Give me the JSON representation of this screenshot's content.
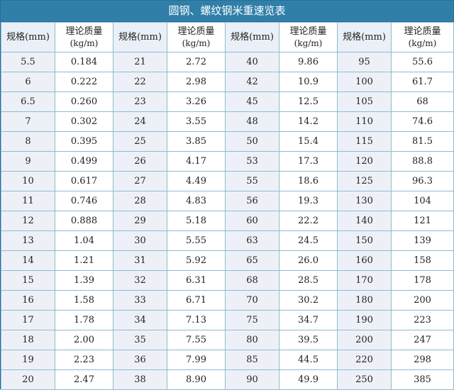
{
  "title": "圆钢、螺纹钢米重速览表",
  "headers": {
    "spec": "规格(mm)",
    "mass_line1": "理论质量",
    "mass_line2": "(kg/m)"
  },
  "rows": [
    [
      "5.5",
      "0.184",
      "21",
      "2.72",
      "40",
      "9.86",
      "95",
      "55.6"
    ],
    [
      "6",
      "0.222",
      "22",
      "2.98",
      "42",
      "10.9",
      "100",
      "61.7"
    ],
    [
      "6.5",
      "0.260",
      "23",
      "3.26",
      "45",
      "12.5",
      "105",
      "68"
    ],
    [
      "7",
      "0.302",
      "24",
      "3.55",
      "48",
      "14.2",
      "110",
      "74.6"
    ],
    [
      "8",
      "0.395",
      "25",
      "3.85",
      "50",
      "15.4",
      "115",
      "81.5"
    ],
    [
      "9",
      "0.499",
      "26",
      "4.17",
      "53",
      "17.3",
      "120",
      "88.8"
    ],
    [
      "10",
      "0.617",
      "27",
      "4.49",
      "55",
      "18.6",
      "125",
      "96.3"
    ],
    [
      "11",
      "0.746",
      "28",
      "4.83",
      "56",
      "19.3",
      "130",
      "104"
    ],
    [
      "12",
      "0.888",
      "29",
      "5.18",
      "60",
      "22.2",
      "140",
      "121"
    ],
    [
      "13",
      "1.04",
      "30",
      "5.55",
      "63",
      "24.5",
      "150",
      "139"
    ],
    [
      "14",
      "1.21",
      "31",
      "5.92",
      "65",
      "26.0",
      "160",
      "158"
    ],
    [
      "15",
      "1.39",
      "32",
      "6.31",
      "68",
      "28.5",
      "170",
      "178"
    ],
    [
      "16",
      "1.58",
      "33",
      "6.71",
      "70",
      "30.2",
      "180",
      "200"
    ],
    [
      "17",
      "1.78",
      "34",
      "7.13",
      "75",
      "34.7",
      "190",
      "223"
    ],
    [
      "18",
      "2.00",
      "35",
      "7.55",
      "80",
      "39.5",
      "200",
      "247"
    ],
    [
      "19",
      "2.23",
      "36",
      "7.99",
      "85",
      "44.5",
      "220",
      "298"
    ],
    [
      "20",
      "2.47",
      "38",
      "8.90",
      "90",
      "49.9",
      "250",
      "385"
    ]
  ]
}
